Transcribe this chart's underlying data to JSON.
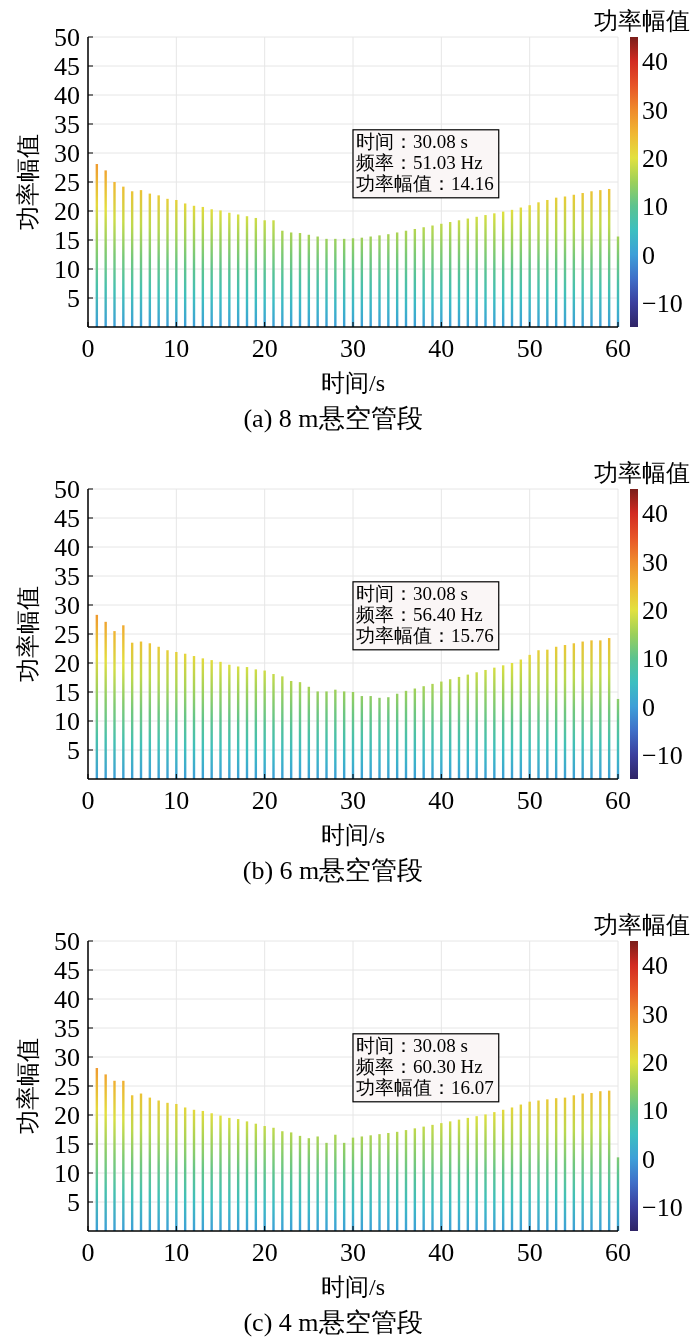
{
  "chart_data": [
    {
      "type": "bar",
      "title": "(a)  8 m悬空管段",
      "xlabel": "时间/s",
      "ylabel": "功率幅值",
      "clabel": "功率幅值",
      "x": [
        1,
        2,
        3,
        4,
        5,
        6,
        7,
        8,
        9,
        10,
        11,
        12,
        13,
        14,
        15,
        16,
        17,
        18,
        19,
        20,
        21,
        22,
        23,
        24,
        25,
        26,
        27,
        28,
        29,
        30,
        31,
        32,
        33,
        34,
        35,
        36,
        37,
        38,
        39,
        40,
        41,
        42,
        43,
        44,
        45,
        46,
        47,
        48,
        49,
        50,
        51,
        52,
        53,
        54,
        55,
        56,
        57,
        58,
        59,
        60
      ],
      "values": [
        28.1,
        27.0,
        25.0,
        24.2,
        23.4,
        23.6,
        23.0,
        22.7,
        22.1,
        21.9,
        21.3,
        20.9,
        20.7,
        20.3,
        20.1,
        19.7,
        19.4,
        19.1,
        18.8,
        18.4,
        18.4,
        16.6,
        16.3,
        16.2,
        15.9,
        15.6,
        15.2,
        15.2,
        15.2,
        15.3,
        15.4,
        15.6,
        15.8,
        16.0,
        16.3,
        16.6,
        16.9,
        17.2,
        17.5,
        17.8,
        18.1,
        18.4,
        18.7,
        19.0,
        19.3,
        19.6,
        19.9,
        20.2,
        20.6,
        21.0,
        21.5,
        21.9,
        22.3,
        22.5,
        22.8,
        23.1,
        23.4,
        23.6,
        23.8,
        15.6
      ],
      "xlim": [
        0,
        60
      ],
      "xticks": [
        0,
        10,
        20,
        30,
        40,
        50,
        60
      ],
      "ylim": [
        0,
        50
      ],
      "yticks": [
        5,
        10,
        15,
        20,
        25,
        30,
        35,
        40,
        45,
        50
      ],
      "clim": [
        -15,
        45
      ],
      "cticks": [
        -10,
        0,
        10,
        20,
        30,
        40
      ],
      "grid": true,
      "annotations": [
        "时间：30.08 s\n频率：51.03 Hz\n功率幅值：14.16"
      ]
    },
    {
      "type": "bar",
      "title": "(b)  6 m悬空管段",
      "xlabel": "时间/s",
      "ylabel": "功率幅值",
      "clabel": "功率幅值",
      "x": [
        1,
        2,
        3,
        4,
        5,
        6,
        7,
        8,
        9,
        10,
        11,
        12,
        13,
        14,
        15,
        16,
        17,
        18,
        19,
        20,
        21,
        22,
        23,
        24,
        25,
        26,
        27,
        28,
        29,
        30,
        31,
        32,
        33,
        34,
        35,
        36,
        37,
        38,
        39,
        40,
        41,
        42,
        43,
        44,
        45,
        46,
        47,
        48,
        49,
        50,
        51,
        52,
        53,
        54,
        55,
        56,
        57,
        58,
        59,
        60
      ],
      "values": [
        28.3,
        27.1,
        25.5,
        26.5,
        23.5,
        23.7,
        23.4,
        22.8,
        22.2,
        21.9,
        21.6,
        21.2,
        20.8,
        20.5,
        20.2,
        19.7,
        19.4,
        19.3,
        18.9,
        18.7,
        18.1,
        17.7,
        16.9,
        16.7,
        15.9,
        15.1,
        15.1,
        15.4,
        15.1,
        15.0,
        14.3,
        14.3,
        14.0,
        14.1,
        14.7,
        15.2,
        15.6,
        16.0,
        16.4,
        16.8,
        17.2,
        17.6,
        18.0,
        18.4,
        18.8,
        19.2,
        19.6,
        20.0,
        20.6,
        21.4,
        22.2,
        22.3,
        22.8,
        23.1,
        23.4,
        23.7,
        23.9,
        23.9,
        24.3,
        13.8
      ],
      "xlim": [
        0,
        60
      ],
      "xticks": [
        0,
        10,
        20,
        30,
        40,
        50,
        60
      ],
      "ylim": [
        0,
        50
      ],
      "yticks": [
        5,
        10,
        15,
        20,
        25,
        30,
        35,
        40,
        45,
        50
      ],
      "clim": [
        -15,
        45
      ],
      "cticks": [
        -10,
        0,
        10,
        20,
        30,
        40
      ],
      "grid": true,
      "annotations": [
        "时间：30.08 s\n频率：56.40 Hz\n功率幅值：15.76"
      ]
    },
    {
      "type": "bar",
      "title": "(c)  4 m悬空管段",
      "xlabel": "时间/s",
      "ylabel": "功率幅值",
      "clabel": "功率幅值",
      "x": [
        1,
        2,
        3,
        4,
        5,
        6,
        7,
        8,
        9,
        10,
        11,
        12,
        13,
        14,
        15,
        16,
        17,
        18,
        19,
        20,
        21,
        22,
        23,
        24,
        25,
        26,
        27,
        28,
        29,
        30,
        31,
        32,
        33,
        34,
        35,
        36,
        37,
        38,
        39,
        40,
        41,
        42,
        43,
        44,
        45,
        46,
        47,
        48,
        49,
        50,
        51,
        52,
        53,
        54,
        55,
        56,
        57,
        58,
        59,
        60
      ],
      "values": [
        28.1,
        27.0,
        25.9,
        25.9,
        23.4,
        23.7,
        23.0,
        22.5,
        22.1,
        21.9,
        21.3,
        20.9,
        20.7,
        20.3,
        19.9,
        19.5,
        19.3,
        18.9,
        18.5,
        18.1,
        17.8,
        17.2,
        17.0,
        16.4,
        16.0,
        16.3,
        15.2,
        16.6,
        15.2,
        16.1,
        16.3,
        16.5,
        16.7,
        16.9,
        17.1,
        17.4,
        17.7,
        18.0,
        18.3,
        18.6,
        18.9,
        19.2,
        19.5,
        19.8,
        20.1,
        20.5,
        20.9,
        21.3,
        21.8,
        22.3,
        22.5,
        22.7,
        22.9,
        23.0,
        23.4,
        23.7,
        23.8,
        24.1,
        24.2,
        12.7
      ],
      "xlim": [
        0,
        60
      ],
      "xticks": [
        0,
        10,
        20,
        30,
        40,
        50,
        60
      ],
      "ylim": [
        0,
        50
      ],
      "yticks": [
        5,
        10,
        15,
        20,
        25,
        30,
        35,
        40,
        45,
        50
      ],
      "clim": [
        -15,
        45
      ],
      "cticks": [
        -10,
        0,
        10,
        20,
        30,
        40
      ],
      "grid": true,
      "annotations": [
        "时间：30.08 s\n频率：60.30 Hz\n功率幅值：16.07"
      ]
    }
  ]
}
